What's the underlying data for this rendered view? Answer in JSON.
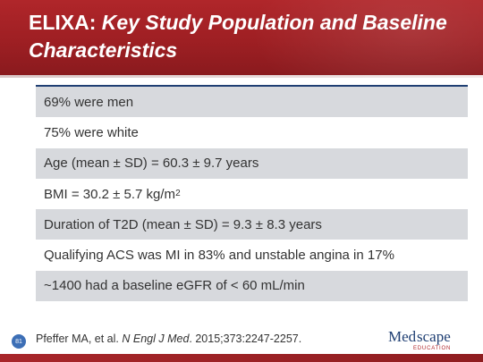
{
  "slide": {
    "title_lead": "ELIXA:",
    "title_rest": "Key Study Population and Baseline Characteristics"
  },
  "table": {
    "rows": [
      {
        "text": "69% were men"
      },
      {
        "text": "75% were white"
      },
      {
        "text": "Age (mean ± SD) = 60.3 ± 9.7 years"
      },
      {
        "text": "BMI = 30.2 ± 5.7 kg/m",
        "sup": "2"
      },
      {
        "text": "Duration of T2D (mean ± SD) = 9.3 ± 8.3 years"
      },
      {
        "text": "Qualifying ACS was MI in 83% and unstable angina in 17%"
      },
      {
        "text": "~1400 had a baseline eGFR of < 60 mL/min"
      }
    ]
  },
  "footer": {
    "slide_number": "81",
    "citation_authors": "Pfeffer MA, et al.",
    "citation_journal": "N Engl J Med",
    "citation_rest": ". 2015;373:2247-2257."
  },
  "logo": {
    "name_part1": "Med",
    "name_part2": "scape",
    "subtitle": "EDUCATION"
  },
  "colors": {
    "header": "#9e1f23",
    "table_rule": "#1f3f73",
    "row_shade": "#d7d9dd",
    "slide_badge": "#3d6fb6"
  }
}
